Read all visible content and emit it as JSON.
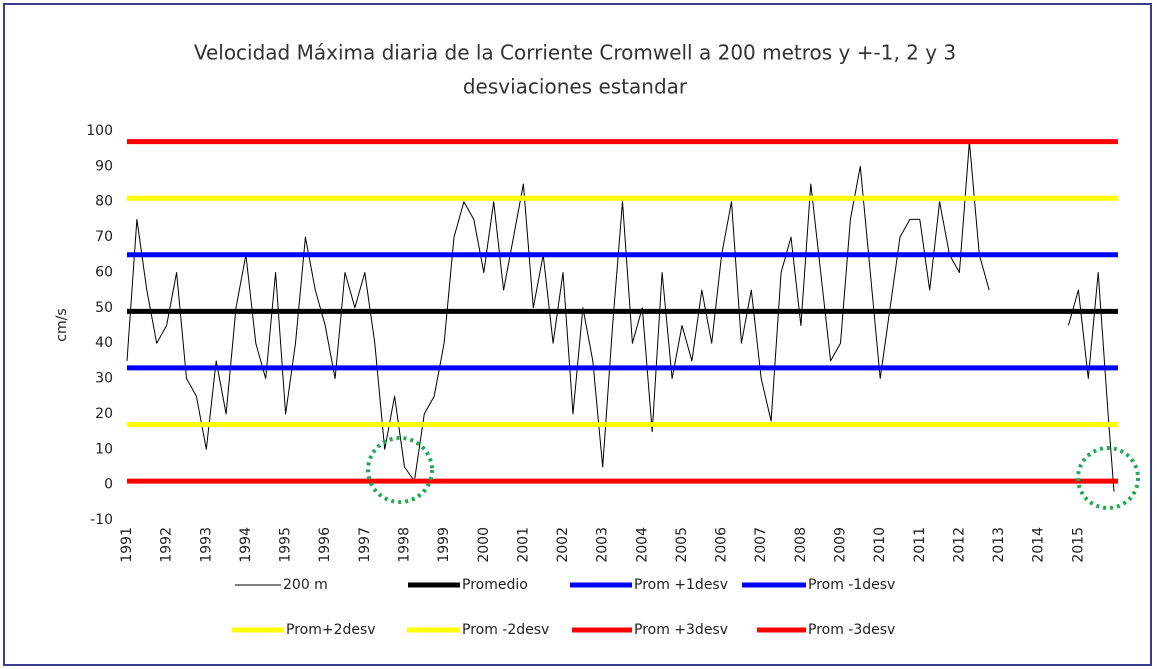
{
  "chart_data": {
    "type": "line",
    "title": [
      "Velocidad Máxima diaria de la Corriente Cromwell a 200 metros y +-1, 2 y 3",
      "desviaciones estandar"
    ],
    "y_label": "cm/s",
    "xlim": [
      1991,
      2016
    ],
    "xticks": [
      1991,
      1992,
      1993,
      1994,
      1995,
      1996,
      1997,
      1998,
      1999,
      2000,
      2001,
      2002,
      2003,
      2004,
      2005,
      2006,
      2007,
      2008,
      2009,
      2010,
      2011,
      2012,
      2013,
      2014,
      2015
    ],
    "ylim": [
      -10,
      100
    ],
    "yticks": [
      -10,
      0,
      10,
      20,
      30,
      40,
      50,
      60,
      70,
      80,
      90,
      100
    ],
    "grid": false,
    "legend": "bottom",
    "series": [
      {
        "name": "200 m",
        "color": "#000000",
        "width": 1,
        "x": [
          1991,
          1991.25,
          1991.5,
          1991.75,
          1992,
          1992.25,
          1992.5,
          1992.75,
          1993,
          1993.25,
          1993.5,
          1993.75,
          1994,
          1994.25,
          1994.5,
          1994.75,
          1995,
          1995.25,
          1995.5,
          1995.75,
          1996,
          1996.25,
          1996.5,
          1996.75,
          1997,
          1997.25,
          1997.5,
          1997.75,
          1998,
          1998.25,
          1998.5,
          1998.75,
          1999,
          1999.25,
          1999.5,
          1999.75,
          2000,
          2000.25,
          2000.5,
          2000.75,
          2001,
          2001.25,
          2001.5,
          2001.75,
          2002,
          2002.25,
          2002.5,
          2002.75,
          2003,
          2003.25,
          2003.5,
          2003.75,
          2004,
          2004.25,
          2004.5,
          2004.75,
          2005,
          2005.25,
          2005.5,
          2005.75,
          2006,
          2006.25,
          2006.5,
          2006.75,
          2007,
          2007.25,
          2007.5,
          2007.75,
          2008,
          2008.25,
          2008.5,
          2008.75,
          2009,
          2009.25,
          2009.5,
          2009.75,
          2010,
          2010.25,
          2010.5,
          2010.75,
          2011,
          2011.25,
          2011.5,
          2011.75,
          2012,
          2012.25,
          2012.5,
          2012.75,
          2013.5,
          2014.75,
          2015,
          2015.25,
          2015.5,
          2015.75,
          2015.9
        ],
        "values": [
          35,
          75,
          55,
          40,
          45,
          60,
          30,
          25,
          10,
          35,
          20,
          50,
          65,
          40,
          30,
          60,
          20,
          40,
          70,
          55,
          45,
          30,
          60,
          50,
          60,
          40,
          10,
          25,
          5,
          1,
          20,
          25,
          40,
          70,
          80,
          75,
          60,
          80,
          55,
          70,
          85,
          50,
          65,
          40,
          60,
          20,
          50,
          35,
          5,
          45,
          80,
          40,
          50,
          15,
          60,
          30,
          45,
          35,
          55,
          40,
          65,
          80,
          40,
          55,
          30,
          18,
          60,
          70,
          45,
          85,
          60,
          35,
          40,
          75,
          90,
          60,
          30,
          50,
          70,
          75,
          75,
          55,
          80,
          65,
          60,
          97,
          65,
          55,
          null,
          45,
          55,
          30,
          60,
          20,
          -2
        ]
      },
      {
        "name": "Promedio",
        "color": "#000000",
        "width": 5,
        "x": [
          1991,
          2016
        ],
        "values": [
          49,
          49
        ]
      },
      {
        "name": "Prom +1desv",
        "color": "#0000ff",
        "width": 5,
        "x": [
          1991,
          2016
        ],
        "values": [
          65,
          65
        ]
      },
      {
        "name": "Prom -1desv",
        "color": "#0000ff",
        "width": 5,
        "x": [
          1991,
          2016
        ],
        "values": [
          33,
          33
        ]
      },
      {
        "name": "Prom+2desv",
        "color": "#ffff00",
        "width": 5,
        "x": [
          1991,
          2016
        ],
        "values": [
          81,
          81
        ]
      },
      {
        "name": "Prom -2desv",
        "color": "#ffff00",
        "width": 5,
        "x": [
          1991,
          2016
        ],
        "values": [
          17,
          17
        ]
      },
      {
        "name": "Prom +3desv",
        "color": "#ff0000",
        "width": 5,
        "x": [
          1991,
          2016
        ],
        "values": [
          97,
          97
        ]
      },
      {
        "name": "Prom -3desv",
        "color": "#ff0000",
        "width": 5,
        "x": [
          1991,
          2016
        ],
        "values": [
          1,
          1
        ]
      }
    ]
  }
}
